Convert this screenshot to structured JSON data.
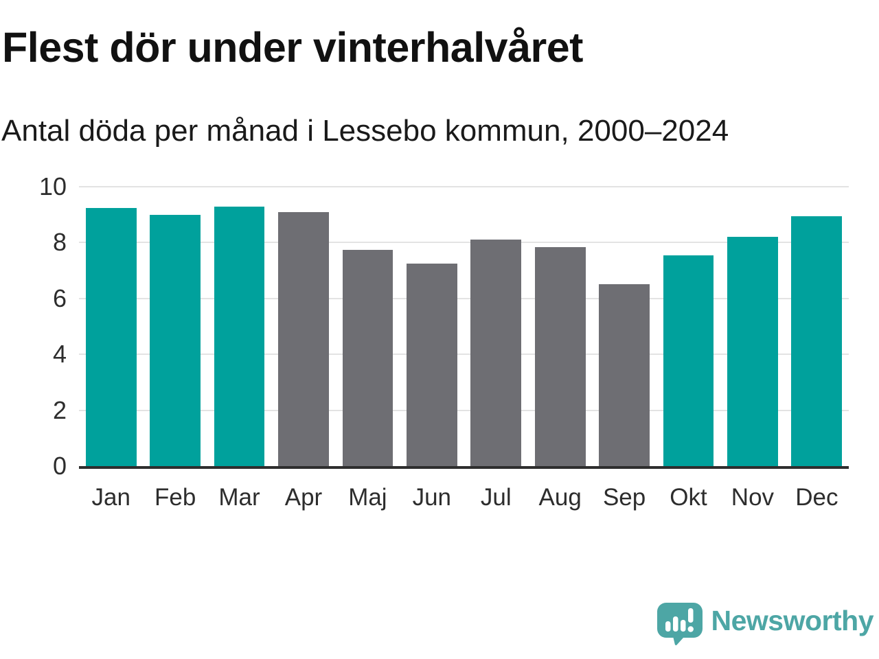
{
  "header": {
    "title": "Flest dör under vinterhalvåret",
    "subtitle": "Antal döda per månad i Lessebo kommun, 2000–2024"
  },
  "chart_data": {
    "type": "bar",
    "title": "Flest dör under vinterhalvåret",
    "subtitle": "Antal döda per månad i Lessebo kommun, 2000–2024",
    "categories": [
      "Jan",
      "Feb",
      "Mar",
      "Apr",
      "Maj",
      "Jun",
      "Jul",
      "Aug",
      "Sep",
      "Okt",
      "Nov",
      "Dec"
    ],
    "values": [
      9.25,
      9.0,
      9.3,
      9.1,
      7.75,
      7.25,
      8.1,
      7.85,
      6.5,
      7.55,
      8.2,
      8.95
    ],
    "bar_colors": [
      "#00a19c",
      "#00a19c",
      "#00a19c",
      "#6e6e73",
      "#6e6e73",
      "#6e6e73",
      "#6e6e73",
      "#6e6e73",
      "#6e6e73",
      "#00a19c",
      "#00a19c",
      "#00a19c"
    ],
    "xlabel": "",
    "ylabel": "",
    "ylim": [
      0,
      10
    ],
    "yticks": [
      0,
      2,
      4,
      6,
      8,
      10
    ],
    "grid": "horizontal",
    "legend": "none"
  },
  "colors": {
    "teal_bar": "#00a19c",
    "gray_bar": "#6e6e73",
    "gridline": "#e3e3e3",
    "axis_line": "#2e2e2e",
    "title_text": "#111111",
    "subtitle_text": "#1a1a1a",
    "tick_text": "#2d2d2d",
    "logo_teal": "#4da6a5"
  },
  "footer": {
    "brand": "Newsworthy",
    "logo_icon": "speech-bubble-bar-chart-icon"
  }
}
